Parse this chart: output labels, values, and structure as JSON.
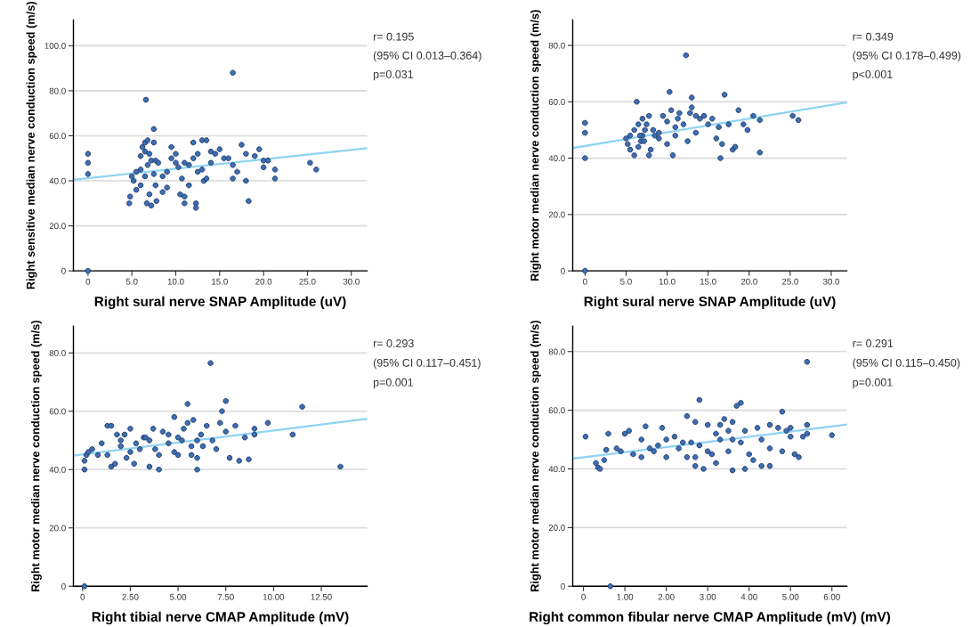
{
  "chart_data": [
    {
      "type": "scatter",
      "xlabel": "Right sural nerve SNAP Amplitude (uV)",
      "ylabel": "Right sensitive median nerve conduction speed (m/s)",
      "annotations": [
        "r= 0.195",
        "(95% CI 0.013–0.364)",
        "p=0.031"
      ],
      "xlim": [
        -1.66,
        31.8
      ],
      "ylim": [
        0,
        111.4
      ],
      "xticks": [
        0,
        {
          "value": 5,
          "label": "5.0"
        },
        {
          "value": 10,
          "label": "10.0"
        },
        {
          "value": 15,
          "label": "15.0"
        },
        {
          "value": 20,
          "label": "20.0"
        },
        {
          "value": 25,
          "label": "25.0"
        },
        {
          "value": 30,
          "label": "30.0"
        }
      ],
      "yticks": [
        0,
        {
          "value": 20,
          "label": "20.0"
        },
        {
          "value": 40,
          "label": "40.0"
        },
        {
          "value": 60,
          "label": "60.0"
        },
        {
          "value": 80,
          "label": "80.0"
        },
        {
          "value": 100,
          "label": "100.0"
        }
      ],
      "grid": "y",
      "series": [
        {
          "marker": "circle",
          "color": "#3d6fb6",
          "x": [
            0,
            0,
            0,
            0,
            16.5,
            6.6,
            7.5,
            7.5,
            6.5,
            6.8,
            6.2,
            6.5,
            7,
            6,
            5.5,
            5,
            5.2,
            4.8,
            4.7,
            5.5,
            6,
            6.5,
            6,
            6.8,
            7.2,
            7.7,
            8,
            7.5,
            7.7,
            7.8,
            8.5,
            7,
            6.7,
            7.2,
            9,
            9,
            9.5,
            10,
            10,
            10.3,
            10.7,
            10.5,
            11,
            11,
            11.5,
            11.5,
            12,
            12,
            12.5,
            12.5,
            12.3,
            12.3,
            13,
            13.5,
            13,
            13.2,
            13.5,
            14,
            14,
            14.5,
            15,
            15.5,
            16,
            16.5,
            16.5,
            17,
            17.5,
            18,
            18,
            18.3,
            19,
            19.5,
            20,
            20,
            20.5,
            21.3,
            21.3,
            25.3,
            26,
            11,
            9.5,
            8.5
          ],
          "values": [
            52,
            48,
            43,
            0,
            88,
            76,
            63,
            57,
            57,
            58,
            55,
            53,
            52,
            51,
            44,
            42,
            40,
            33,
            30,
            36,
            38,
            42,
            45,
            47,
            49,
            49,
            48,
            43,
            38,
            31,
            35,
            34,
            30,
            29,
            44,
            37,
            50,
            52,
            48,
            46,
            41,
            34,
            33,
            30,
            38,
            47,
            50,
            57,
            52,
            44,
            30,
            28,
            58,
            58,
            45,
            40,
            41,
            53,
            48,
            52,
            54,
            50,
            50,
            47,
            41,
            44,
            56,
            52,
            40,
            31,
            51,
            54,
            49,
            46,
            49,
            45,
            41,
            48,
            45,
            48,
            55,
            42
          ]
        },
        {
          "type": "line",
          "color": "#8fd3f5",
          "x": [
            -1.66,
            31.8
          ],
          "values": [
            40.5,
            54.5
          ]
        }
      ]
    },
    {
      "type": "scatter",
      "xlabel": "Right sural nerve SNAP Amplitude (uV)",
      "ylabel": "Right motor median nerve conduction speed (m/s)",
      "annotations": [
        "r= 0.349",
        "(95% CI 0.178–0.499)",
        "p<0.001"
      ],
      "xlim": [
        -1.5,
        31.9
      ],
      "ylim": [
        0,
        89
      ],
      "xticks": [
        0,
        {
          "value": 5,
          "label": "5.0"
        },
        {
          "value": 10,
          "label": "10.0"
        },
        {
          "value": 15,
          "label": "15.0"
        },
        {
          "value": 20,
          "label": "20.0"
        },
        {
          "value": 25,
          "label": "25.0"
        },
        {
          "value": 30,
          "label": "30.0"
        }
      ],
      "yticks": [
        0,
        {
          "value": 20,
          "label": "20.0"
        },
        {
          "value": 40,
          "label": "40.0"
        },
        {
          "value": 60,
          "label": "60.0"
        },
        {
          "value": 80,
          "label": "80.0"
        }
      ],
      "grid": "y",
      "series": [
        {
          "marker": "circle",
          "color": "#3d6fb6",
          "x": [
            0,
            0,
            0,
            0,
            12.3,
            10.3,
            13,
            17,
            6.3,
            7,
            6.5,
            6,
            5.5,
            5,
            5.2,
            5.5,
            6,
            6.5,
            6.8,
            7,
            7.3,
            7.5,
            7.8,
            8,
            7.8,
            8.5,
            9,
            9.5,
            10,
            10,
            10.5,
            10.7,
            11,
            11.3,
            11.5,
            12,
            12.5,
            12.8,
            13,
            13.5,
            13.5,
            14,
            14.5,
            15,
            15.5,
            16,
            16.3,
            16.5,
            16.7,
            17.5,
            18,
            18.3,
            18.7,
            19.3,
            19.8,
            20.5,
            21.3,
            21.3,
            25.3,
            26,
            11,
            9,
            8.3,
            6.7,
            7.2
          ],
          "values": [
            0,
            52.5,
            49,
            40,
            76.5,
            63.5,
            61.5,
            62.5,
            60,
            54,
            52,
            50,
            48,
            47,
            45,
            43,
            41,
            44,
            46,
            48,
            50,
            52,
            55,
            43,
            41,
            48,
            49,
            55,
            53,
            45,
            57,
            41,
            48,
            54,
            56,
            52,
            46,
            56,
            58,
            55,
            49,
            54,
            55,
            52,
            54,
            47,
            51,
            40,
            45,
            52,
            43,
            44,
            57,
            52,
            50,
            55,
            53.5,
            42,
            55,
            53.5,
            51,
            47,
            50,
            48,
            46
          ]
        },
        {
          "type": "line",
          "color": "#8fd3f5",
          "x": [
            -1.5,
            31.9
          ],
          "values": [
            43.6,
            59.8
          ]
        }
      ]
    },
    {
      "type": "scatter",
      "xlabel": "Right tibial nerve CMAP Amplitude (mV)",
      "ylabel": "Right motor median nerve conduction speed (m/s)",
      "annotations": [
        "r= 0.293",
        "(95% CI 0.117–0.451)",
        "p=0.001"
      ],
      "xlim": [
        -0.48,
        14.9
      ],
      "ylim": [
        0,
        89.2
      ],
      "xticks": [
        0,
        {
          "value": 2.5,
          "label": "2.50"
        },
        {
          "value": 5,
          "label": "5.00"
        },
        {
          "value": 7.5,
          "label": "7.50"
        },
        {
          "value": 10,
          "label": "10.00"
        },
        {
          "value": 12.5,
          "label": "12.50"
        }
      ],
      "yticks": [
        0,
        {
          "value": 20,
          "label": "20.0"
        },
        {
          "value": 40,
          "label": "40.0"
        },
        {
          "value": 60,
          "label": "60.0"
        },
        {
          "value": 80,
          "label": "80.0"
        }
      ],
      "grid": "y",
      "series": [
        {
          "marker": "circle",
          "color": "#3d6fb6",
          "x": [
            0.1,
            0.1,
            0.1,
            0.2,
            0.3,
            0.5,
            1,
            0.8,
            1.3,
            1.5,
            1.5,
            1.7,
            1.3,
            1.8,
            2,
            2,
            2.3,
            2.5,
            2.5,
            2.7,
            2.8,
            3,
            3.2,
            3.5,
            3.5,
            3.7,
            3.8,
            4,
            4,
            4.5,
            4.5,
            4.8,
            4.8,
            5,
            5.2,
            5.3,
            5.5,
            5.5,
            5.7,
            5.8,
            6,
            6,
            6.2,
            6.5,
            6.7,
            6.8,
            7,
            7.2,
            7.3,
            7.5,
            7.5,
            7.7,
            8,
            8.2,
            8.5,
            8.7,
            9,
            9,
            9.7,
            11,
            11.5,
            13.5,
            5,
            6,
            4.2,
            3.3,
            2.2,
            5.7,
            6.3
          ],
          "values": [
            0,
            40,
            43,
            45,
            46,
            47,
            49,
            45,
            55,
            55,
            41,
            42,
            45,
            52,
            50,
            48,
            44,
            54,
            46,
            42,
            49,
            47,
            51,
            50,
            41,
            54,
            47,
            45,
            40,
            52,
            49,
            46,
            58,
            45,
            50,
            54,
            56,
            62.5,
            48,
            57,
            44,
            40,
            52,
            55,
            76.5,
            50,
            47,
            56,
            60,
            63.5,
            53,
            44,
            55,
            43,
            51,
            43.5,
            54,
            52,
            56,
            52,
            61.5,
            41,
            51,
            50,
            53,
            51,
            52,
            45,
            48
          ]
        },
        {
          "type": "line",
          "color": "#8fd3f5",
          "x": [
            -0.48,
            14.9
          ],
          "values": [
            44.8,
            57.4
          ]
        }
      ]
    },
    {
      "type": "scatter",
      "xlabel": "Right common fibular nerve CMAP Amplitude (mV) (mV)",
      "ylabel": "Right motor median nerve conduction speed (m/s)",
      "annotations": [
        "r= 0.291",
        "(95% CI 0.115–0.450)",
        "p=0.001"
      ],
      "xlim": [
        -0.26,
        6.36
      ],
      "ylim": [
        0,
        88.7
      ],
      "xticks": [
        0,
        {
          "value": 1,
          "label": "1.00"
        },
        {
          "value": 2,
          "label": "2.00"
        },
        {
          "value": 3,
          "label": "3.00"
        },
        {
          "value": 4,
          "label": "4.00"
        },
        {
          "value": 5,
          "label": "5.00"
        },
        {
          "value": 6,
          "label": "6.00"
        }
      ],
      "yticks": [
        0,
        {
          "value": 20,
          "label": "20.0"
        },
        {
          "value": 40,
          "label": "40.0"
        },
        {
          "value": 60,
          "label": "60.0"
        },
        {
          "value": 80,
          "label": "80.0"
        }
      ],
      "grid": "y",
      "series": [
        {
          "marker": "circle",
          "color": "#3d6fb6",
          "x": [
            0.05,
            0.3,
            0.35,
            0.4,
            0.5,
            0.55,
            0.6,
            0.65,
            0.8,
            0.9,
            1,
            1.1,
            1.2,
            1.4,
            1.4,
            1.5,
            1.6,
            1.7,
            1.8,
            1.9,
            2,
            2,
            2.2,
            2.3,
            2.4,
            2.5,
            2.5,
            2.6,
            2.7,
            2.7,
            2.7,
            2.8,
            2.8,
            2.9,
            3,
            3,
            3.1,
            3.2,
            3.2,
            3.3,
            3.3,
            3.4,
            3.5,
            3.5,
            3.6,
            3.6,
            3.6,
            3.7,
            3.8,
            3.8,
            3.9,
            3.9,
            4,
            4.1,
            4.2,
            4.3,
            4.3,
            4.5,
            4.5,
            4.5,
            4.7,
            4.8,
            4.8,
            4.9,
            5,
            5,
            5.1,
            5.2,
            5.3,
            5.4,
            5.4,
            5.4,
            6
          ],
          "values": [
            51,
            42,
            40.5,
            40,
            43,
            46.5,
            52,
            0,
            47,
            46,
            52,
            53,
            45,
            44,
            50,
            54.5,
            47,
            46,
            48,
            54,
            50,
            44,
            51,
            47,
            49,
            58,
            44,
            49,
            41,
            44,
            56,
            63.5,
            48,
            40,
            55,
            46,
            45,
            52,
            42,
            55,
            50,
            57,
            53,
            46,
            56,
            39.5,
            50,
            61.5,
            62.5,
            49,
            53,
            40,
            45,
            43,
            54,
            50,
            41,
            55,
            47,
            41,
            54,
            59.5,
            46,
            53,
            54,
            51,
            45,
            44,
            51,
            76.5,
            55,
            52,
            51.5
          ]
        },
        {
          "type": "line",
          "color": "#8fd3f5",
          "x": [
            -0.26,
            6.36
          ],
          "values": [
            43.5,
            55.1
          ]
        }
      ]
    }
  ]
}
